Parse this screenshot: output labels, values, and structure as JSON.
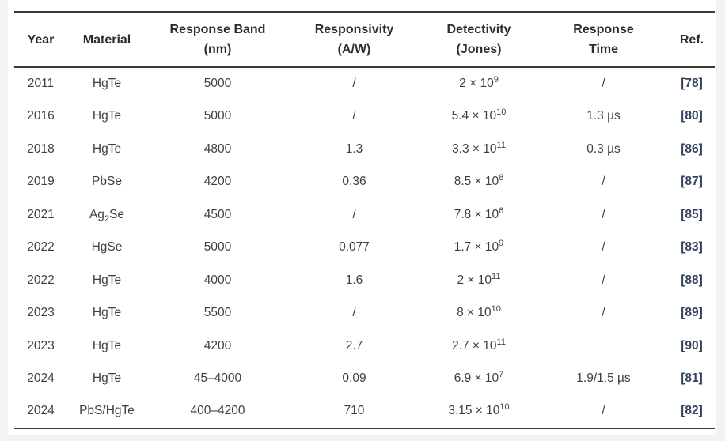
{
  "table": {
    "headers": [
      {
        "line1": "Year",
        "line2": ""
      },
      {
        "line1": "Material",
        "line2": ""
      },
      {
        "line1": "Response Band",
        "line2": "(nm)"
      },
      {
        "line1": "Responsivity",
        "line2": "(A/W)"
      },
      {
        "line1": "Detectivity",
        "line2": "(Jones)"
      },
      {
        "line1": "Response",
        "line2": "Time"
      },
      {
        "line1": "Ref.",
        "line2": ""
      }
    ],
    "rows": [
      {
        "year": "2011",
        "material": {
          "pre": "HgTe",
          "sub": "",
          "post": ""
        },
        "band": "5000",
        "responsivity": "/",
        "detectivity": {
          "mantissa": "2 × 10",
          "exponent": "9"
        },
        "response_time": "/",
        "ref": "[78]"
      },
      {
        "year": "2016",
        "material": {
          "pre": "HgTe",
          "sub": "",
          "post": ""
        },
        "band": "5000",
        "responsivity": "/",
        "detectivity": {
          "mantissa": "5.4 × 10",
          "exponent": "10"
        },
        "response_time": "1.3 µs",
        "ref": "[80]"
      },
      {
        "year": "2018",
        "material": {
          "pre": "HgTe",
          "sub": "",
          "post": ""
        },
        "band": "4800",
        "responsivity": "1.3",
        "detectivity": {
          "mantissa": "3.3 × 10",
          "exponent": "11"
        },
        "response_time": "0.3 µs",
        "ref": "[86]"
      },
      {
        "year": "2019",
        "material": {
          "pre": "PbSe",
          "sub": "",
          "post": ""
        },
        "band": "4200",
        "responsivity": "0.36",
        "detectivity": {
          "mantissa": "8.5 × 10",
          "exponent": "8"
        },
        "response_time": "/",
        "ref": "[87]"
      },
      {
        "year": "2021",
        "material": {
          "pre": "Ag",
          "sub": "2",
          "post": "Se"
        },
        "band": "4500",
        "responsivity": "/",
        "detectivity": {
          "mantissa": "7.8 × 10",
          "exponent": "6"
        },
        "response_time": "/",
        "ref": "[85]"
      },
      {
        "year": "2022",
        "material": {
          "pre": "HgSe",
          "sub": "",
          "post": ""
        },
        "band": "5000",
        "responsivity": "0.077",
        "detectivity": {
          "mantissa": "1.7 × 10",
          "exponent": "9"
        },
        "response_time": "/",
        "ref": "[83]"
      },
      {
        "year": "2022",
        "material": {
          "pre": "HgTe",
          "sub": "",
          "post": ""
        },
        "band": "4000",
        "responsivity": "1.6",
        "detectivity": {
          "mantissa": "2 × 10",
          "exponent": "11"
        },
        "response_time": "/",
        "ref": "[88]"
      },
      {
        "year": "2023",
        "material": {
          "pre": "HgTe",
          "sub": "",
          "post": ""
        },
        "band": "5500",
        "responsivity": "/",
        "detectivity": {
          "mantissa": "8 × 10",
          "exponent": "10"
        },
        "response_time": "/",
        "ref": "[89]"
      },
      {
        "year": "2023",
        "material": {
          "pre": "HgTe",
          "sub": "",
          "post": ""
        },
        "band": "4200",
        "responsivity": "2.7",
        "detectivity": {
          "mantissa": "2.7 × 10",
          "exponent": "11"
        },
        "response_time": "",
        "ref": "[90]"
      },
      {
        "year": "2024",
        "material": {
          "pre": "HgTe",
          "sub": "",
          "post": ""
        },
        "band": "45–4000",
        "responsivity": "0.09",
        "detectivity": {
          "mantissa": "6.9 × 10",
          "exponent": "7"
        },
        "response_time": "1.9/1.5 µs",
        "ref": "[81]"
      },
      {
        "year": "2024",
        "material": {
          "pre": "PbS/HgTe",
          "sub": "",
          "post": ""
        },
        "band": "400–4200",
        "responsivity": "710",
        "detectivity": {
          "mantissa": "3.15 × 10",
          "exponent": "10"
        },
        "response_time": "/",
        "ref": "[82]"
      }
    ],
    "colors": {
      "page_background": "#f3f3f3",
      "card_background": "#ffffff",
      "rule": "#3a3a3a",
      "header_text": "#2d2d2d",
      "body_text": "#3f3f3f",
      "ref_link": "#36425c"
    }
  }
}
